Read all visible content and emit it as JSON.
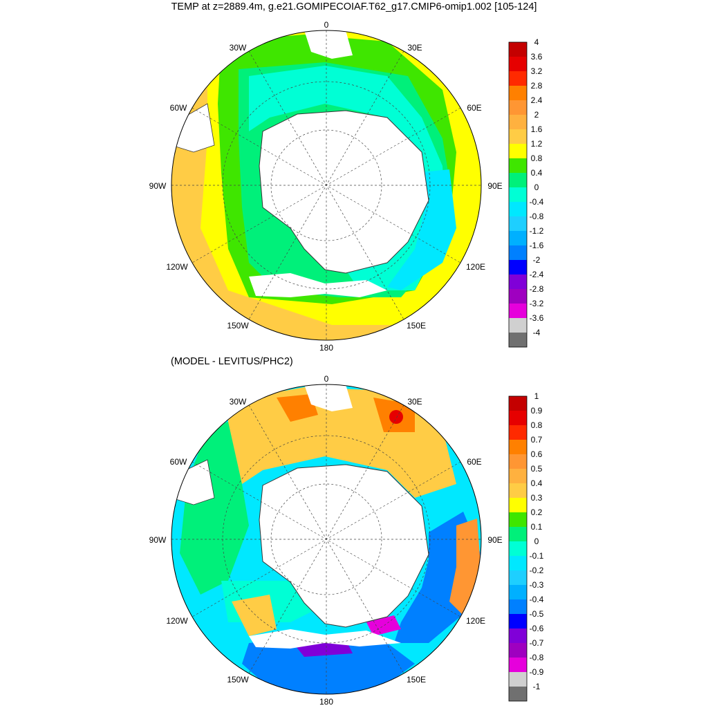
{
  "title": "TEMP at z=2889.4m, g.e21.GOMIPECOIAF.T62_g17.CMIP6-omip1.002 [105-124]",
  "subtitle": "(MODEL - LEVITUS/PHC2)",
  "longitude_labels": {
    "lon_0": "0",
    "lon_30e": "30E",
    "lon_60e": "60E",
    "lon_90e": "90E",
    "lon_120e": "120E",
    "lon_150e": "150E",
    "lon_180": "180",
    "lon_150w": "150W",
    "lon_120w": "120W",
    "lon_90w": "90W",
    "lon_60w": "60W",
    "lon_30w": "30W"
  },
  "colors": {
    "land": "#ffffff",
    "coast": "#333333",
    "grid": "#444444"
  },
  "colorbars": [
    {
      "labels": [
        "4",
        "3.6",
        "3.2",
        "2.8",
        "2.4",
        "2",
        "1.6",
        "1.2",
        "0.8",
        "0.4",
        "0",
        "-0.4",
        "-0.8",
        "-1.2",
        "-1.6",
        "-2",
        "-2.4",
        "-2.8",
        "-3.2",
        "-3.6",
        "-4"
      ],
      "colors": [
        "#c40000",
        "#e60000",
        "#ff2a00",
        "#ff8000",
        "#ff9633",
        "#ffb13f",
        "#ffcc45",
        "#ffff00",
        "#3fe600",
        "#00f07a",
        "#00ffd5",
        "#00e8ff",
        "#1ecfff",
        "#00b0ff",
        "#0080ff",
        "#0000ff",
        "#8000d8",
        "#9f00c0",
        "#e600dc",
        "#d0d0d0",
        "#707070"
      ]
    },
    {
      "labels": [
        "1",
        "0.9",
        "0.8",
        "0.7",
        "0.6",
        "0.5",
        "0.4",
        "0.3",
        "0.2",
        "0.1",
        "0",
        "-0.1",
        "-0.2",
        "-0.3",
        "-0.4",
        "-0.5",
        "-0.6",
        "-0.7",
        "-0.8",
        "-0.9",
        "-1"
      ],
      "colors": [
        "#c40000",
        "#e60000",
        "#ff2a00",
        "#ff8000",
        "#ff9633",
        "#ffb13f",
        "#ffcc45",
        "#ffff00",
        "#3fe600",
        "#00f07a",
        "#00ffd5",
        "#00e8ff",
        "#1ecfff",
        "#00b0ff",
        "#0080ff",
        "#0000ff",
        "#8000d8",
        "#9f00c0",
        "#e600dc",
        "#d0d0d0",
        "#707070"
      ]
    }
  ]
}
